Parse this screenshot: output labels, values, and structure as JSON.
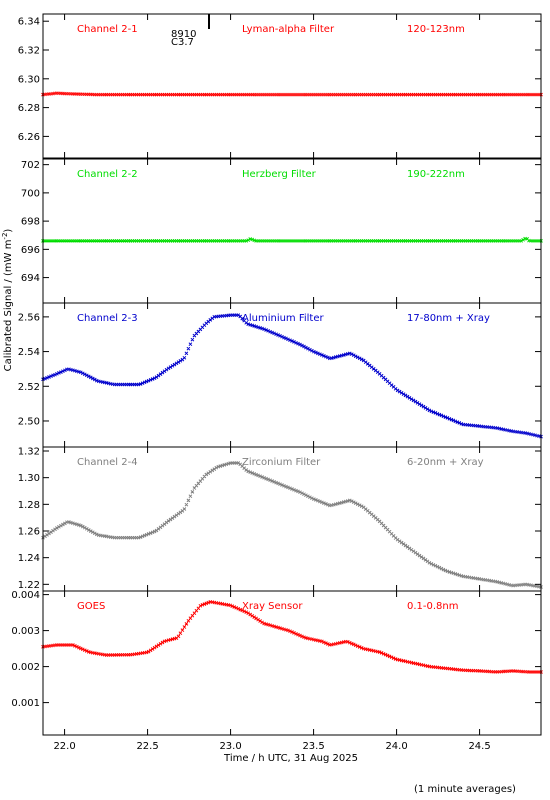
{
  "chart_data": {
    "type": "scatter",
    "xlabel": "Time / h UTC, 31 Aug 2025",
    "ylabel": "Calibrated Signal / (mW m",
    "ylabel_sup": "-2",
    "ylabel_close": ")",
    "footnote": "(1 minute averages)",
    "x_range": [
      21.87,
      24.87
    ],
    "x_ticks": [
      22.0,
      22.5,
      23.0,
      23.5,
      24.0,
      24.5
    ],
    "x_tick_labels": [
      "22.0",
      "22.5",
      "23.0",
      "23.5",
      "24.0",
      "24.5"
    ],
    "panels": [
      {
        "name": "Channel 2-1",
        "filter": "Lyman-alpha Filter",
        "band": "120-123nm",
        "color": "#ff0000",
        "ylim": [
          6.245,
          6.345
        ],
        "yticks": [
          6.26,
          6.28,
          6.3,
          6.32,
          6.34
        ],
        "ytick_labels": [
          "6.26",
          "6.28",
          "6.30",
          "6.32",
          "6.34"
        ],
        "annotations": [
          "8910",
          "C3.7"
        ],
        "profile": [
          [
            21.87,
            6.289
          ],
          [
            21.95,
            6.29
          ],
          [
            22.05,
            6.2895
          ],
          [
            22.2,
            6.289
          ],
          [
            24.87,
            6.289
          ]
        ]
      },
      {
        "name": "Channel 2-2",
        "filter": "Herzberg Filter",
        "band": "190-222nm",
        "color": "#00dd00",
        "ylim": [
          692.2,
          702.4
        ],
        "yticks": [
          694,
          696,
          698,
          700,
          702
        ],
        "ytick_labels": [
          "694",
          "696",
          "698",
          "700",
          "702"
        ],
        "profile": [
          [
            21.87,
            696.6
          ],
          [
            23.1,
            696.6
          ],
          [
            23.12,
            696.75
          ],
          [
            23.15,
            696.6
          ],
          [
            24.75,
            696.6
          ],
          [
            24.78,
            696.8
          ],
          [
            24.8,
            696.6
          ],
          [
            24.87,
            696.6
          ]
        ]
      },
      {
        "name": "Channel 2-3",
        "filter": "Aluminium Filter",
        "band": "17-80nm + Xray",
        "color": "#0000cc",
        "ylim": [
          2.485,
          2.568
        ],
        "yticks": [
          2.5,
          2.52,
          2.54,
          2.56
        ],
        "ytick_labels": [
          "2.50",
          "2.52",
          "2.54",
          "2.56"
        ],
        "profile": [
          [
            21.87,
            2.524
          ],
          [
            21.95,
            2.527
          ],
          [
            22.02,
            2.53
          ],
          [
            22.1,
            2.528
          ],
          [
            22.2,
            2.523
          ],
          [
            22.3,
            2.521
          ],
          [
            22.45,
            2.521
          ],
          [
            22.55,
            2.525
          ],
          [
            22.62,
            2.53
          ],
          [
            22.72,
            2.536
          ],
          [
            22.78,
            2.549
          ],
          [
            22.85,
            2.556
          ],
          [
            22.9,
            2.56
          ],
          [
            23.0,
            2.561
          ],
          [
            23.05,
            2.561
          ],
          [
            23.1,
            2.556
          ],
          [
            23.2,
            2.553
          ],
          [
            23.3,
            2.549
          ],
          [
            23.42,
            2.544
          ],
          [
            23.5,
            2.54
          ],
          [
            23.6,
            2.536
          ],
          [
            23.72,
            2.539
          ],
          [
            23.8,
            2.535
          ],
          [
            23.9,
            2.527
          ],
          [
            24.0,
            2.518
          ],
          [
            24.1,
            2.512
          ],
          [
            24.2,
            2.506
          ],
          [
            24.3,
            2.502
          ],
          [
            24.4,
            2.498
          ],
          [
            24.5,
            2.497
          ],
          [
            24.6,
            2.496
          ],
          [
            24.7,
            2.494
          ],
          [
            24.78,
            2.493
          ],
          [
            24.87,
            2.491
          ]
        ]
      },
      {
        "name": "Channel 2-4",
        "filter": "Zirconium Filter",
        "band": "6-20nm + Xray",
        "color": "#808080",
        "ylim": [
          1.215,
          1.323
        ],
        "yticks": [
          1.22,
          1.24,
          1.26,
          1.28,
          1.3,
          1.32
        ],
        "ytick_labels": [
          "1.22",
          "1.24",
          "1.26",
          "1.28",
          "1.30",
          "1.32"
        ],
        "profile": [
          [
            21.87,
            1.255
          ],
          [
            21.95,
            1.262
          ],
          [
            22.02,
            1.267
          ],
          [
            22.1,
            1.264
          ],
          [
            22.2,
            1.257
          ],
          [
            22.3,
            1.255
          ],
          [
            22.45,
            1.255
          ],
          [
            22.55,
            1.26
          ],
          [
            22.62,
            1.267
          ],
          [
            22.72,
            1.276
          ],
          [
            22.78,
            1.292
          ],
          [
            22.85,
            1.302
          ],
          [
            22.92,
            1.308
          ],
          [
            23.0,
            1.311
          ],
          [
            23.05,
            1.311
          ],
          [
            23.1,
            1.305
          ],
          [
            23.2,
            1.3
          ],
          [
            23.3,
            1.295
          ],
          [
            23.42,
            1.289
          ],
          [
            23.5,
            1.284
          ],
          [
            23.6,
            1.279
          ],
          [
            23.72,
            1.283
          ],
          [
            23.8,
            1.278
          ],
          [
            23.9,
            1.267
          ],
          [
            24.0,
            1.254
          ],
          [
            24.1,
            1.245
          ],
          [
            24.2,
            1.236
          ],
          [
            24.3,
            1.23
          ],
          [
            24.4,
            1.226
          ],
          [
            24.5,
            1.224
          ],
          [
            24.6,
            1.222
          ],
          [
            24.7,
            1.219
          ],
          [
            24.78,
            1.22
          ],
          [
            24.87,
            1.218
          ]
        ]
      },
      {
        "name": "GOES",
        "filter": "Xray Sensor",
        "band": "0.1-0.8nm",
        "color": "#ff0000",
        "ylim": [
          0.0001,
          0.0041
        ],
        "yticks": [
          0.001,
          0.002,
          0.003,
          0.004
        ],
        "ytick_labels": [
          "0.001",
          "0.002",
          "0.003",
          "0.004"
        ],
        "profile": [
          [
            21.87,
            0.00255
          ],
          [
            21.95,
            0.0026
          ],
          [
            22.05,
            0.0026
          ],
          [
            22.15,
            0.0024
          ],
          [
            22.25,
            0.00232
          ],
          [
            22.4,
            0.00233
          ],
          [
            22.5,
            0.0024
          ],
          [
            22.6,
            0.0027
          ],
          [
            22.68,
            0.0028
          ],
          [
            22.75,
            0.0033
          ],
          [
            22.82,
            0.0037
          ],
          [
            22.88,
            0.0038
          ],
          [
            23.0,
            0.0037
          ],
          [
            23.1,
            0.0035
          ],
          [
            23.2,
            0.0032
          ],
          [
            23.35,
            0.003
          ],
          [
            23.45,
            0.0028
          ],
          [
            23.55,
            0.0027
          ],
          [
            23.6,
            0.0026
          ],
          [
            23.7,
            0.0027
          ],
          [
            23.8,
            0.0025
          ],
          [
            23.9,
            0.0024
          ],
          [
            24.0,
            0.0022
          ],
          [
            24.1,
            0.0021
          ],
          [
            24.2,
            0.002
          ],
          [
            24.3,
            0.00195
          ],
          [
            24.4,
            0.0019
          ],
          [
            24.5,
            0.00188
          ],
          [
            24.6,
            0.00185
          ],
          [
            24.7,
            0.00188
          ],
          [
            24.8,
            0.00185
          ],
          [
            24.87,
            0.00185
          ]
        ]
      }
    ]
  }
}
